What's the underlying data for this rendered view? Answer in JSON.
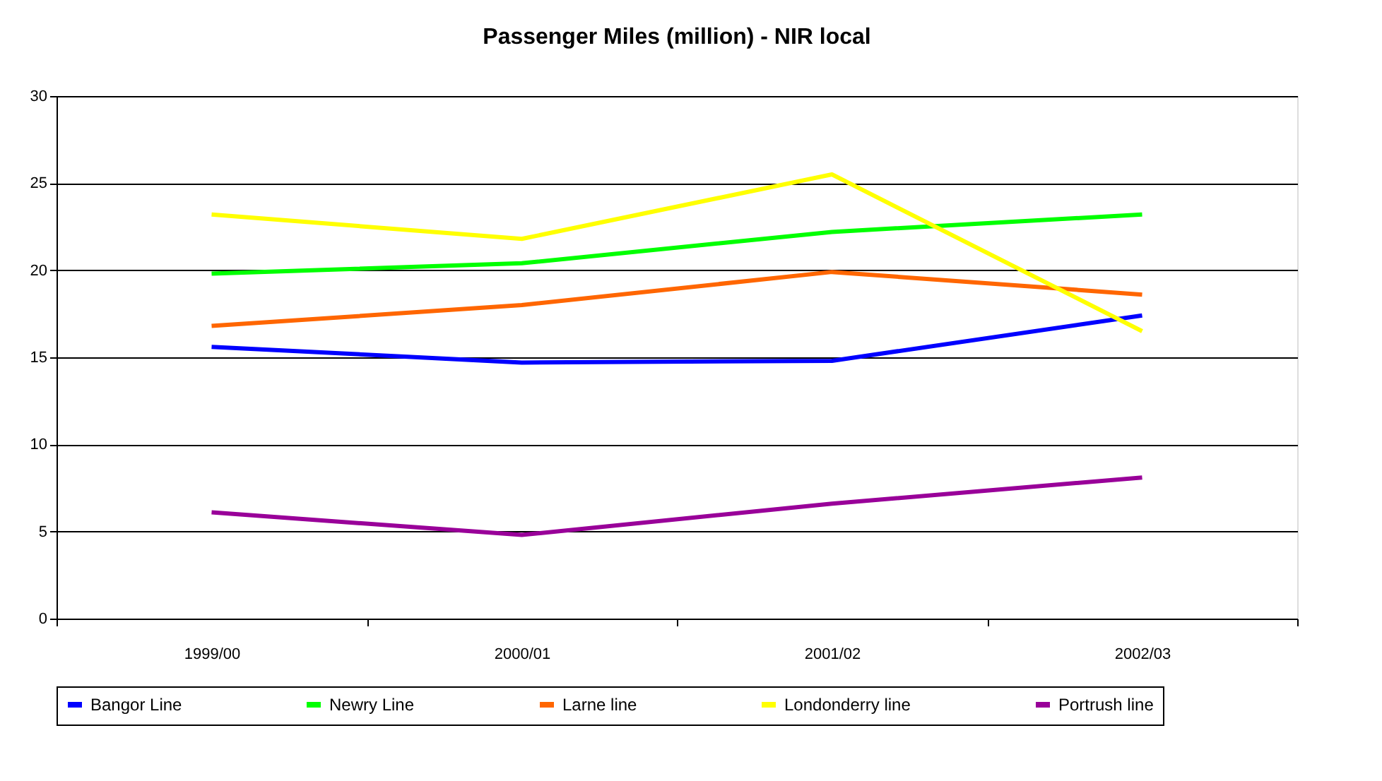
{
  "chart_data": {
    "type": "line",
    "title": "Passenger Miles (million) - NIR local",
    "categories": [
      "1999/00",
      "2000/01",
      "2001/02",
      "2002/03"
    ],
    "series": [
      {
        "name": "Bangor Line",
        "color": "#0000ff",
        "values": [
          15.6,
          14.7,
          14.8,
          17.4
        ]
      },
      {
        "name": "Newry Line",
        "color": "#00ff00",
        "values": [
          19.8,
          20.4,
          22.2,
          23.2
        ]
      },
      {
        "name": "Larne line",
        "color": "#ff6600",
        "values": [
          16.8,
          18.0,
          19.9,
          18.6
        ]
      },
      {
        "name": "Londonderry line",
        "color": "#ffff00",
        "values": [
          23.2,
          21.8,
          25.5,
          16.5
        ]
      },
      {
        "name": "Portrush line",
        "color": "#990099",
        "values": [
          6.1,
          4.8,
          6.6,
          8.1
        ]
      }
    ],
    "ylim": [
      0,
      30
    ],
    "yticks": [
      0,
      5,
      10,
      15,
      20,
      25,
      30
    ],
    "grid": "y",
    "legend": "bottom",
    "marker": "none",
    "line_style": "solid"
  }
}
